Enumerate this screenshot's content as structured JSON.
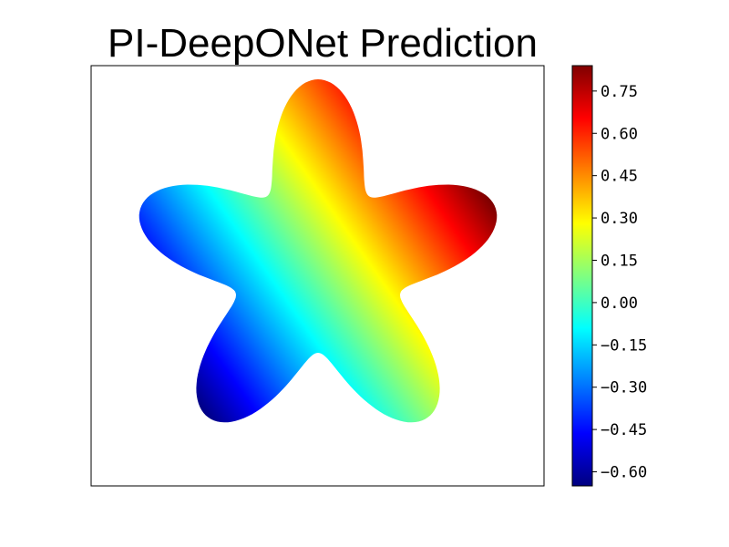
{
  "chart_data": {
    "type": "heatmap",
    "title": "PI-DeepONet Prediction",
    "xlabel": "",
    "ylabel": "",
    "grid": false,
    "axes_ticks_visible": false,
    "domain_shape": "five-lobed star (flower) region",
    "field": {
      "description": "approximately linear gradient increasing from lower-left to upper-right",
      "min": -0.65,
      "max": 0.84,
      "direction_degrees": 35
    },
    "colorbar": {
      "colormap": "jet",
      "range": [
        -0.65,
        0.84
      ],
      "ticks": [
        0.75,
        0.6,
        0.45,
        0.3,
        0.15,
        0.0,
        -0.15,
        -0.3,
        -0.45,
        -0.6
      ],
      "tick_labels": [
        "0.75",
        "0.60",
        "0.45",
        "0.30",
        "0.15",
        "0.00",
        "−0.15",
        "−0.30",
        "−0.45",
        "−0.60"
      ]
    }
  }
}
